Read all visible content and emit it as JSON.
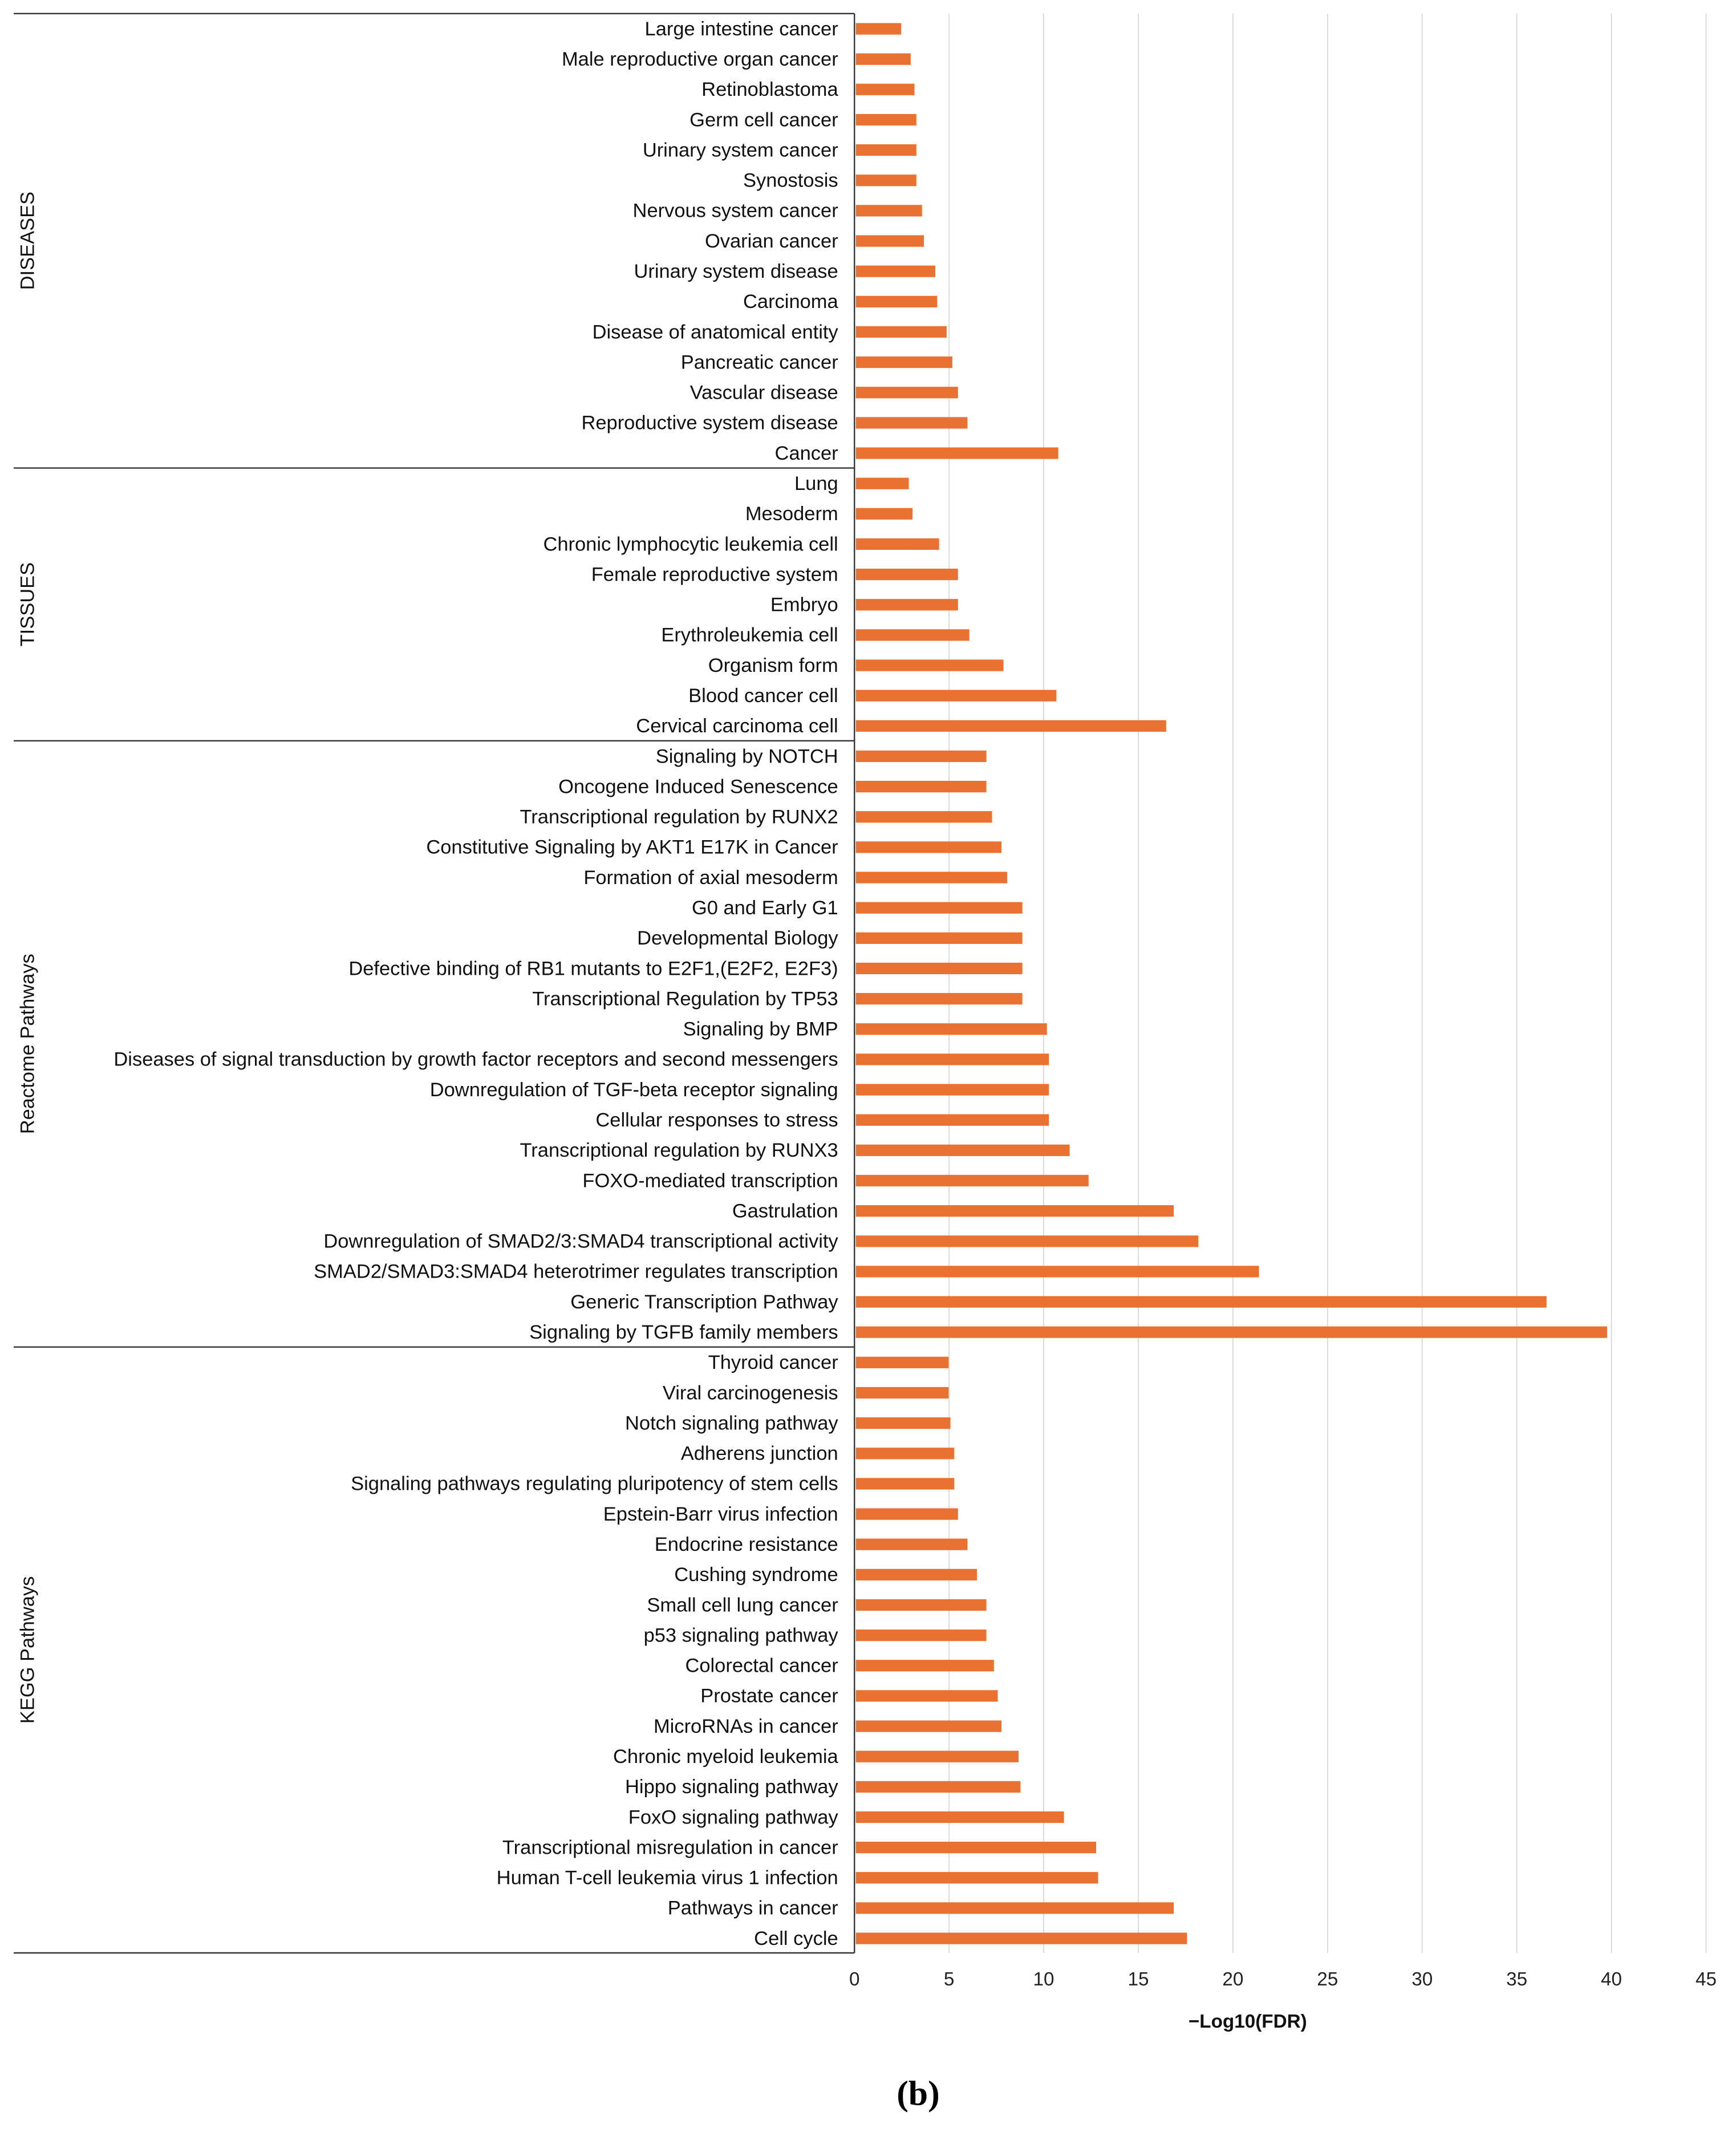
{
  "chart_data": {
    "type": "bar",
    "orientation": "horizontal",
    "xlabel": "−Log10(FDR)",
    "xlim": [
      0,
      45
    ],
    "xticks": [
      "0",
      "5",
      "10",
      "15",
      "20",
      "25",
      "30",
      "35",
      "40",
      "45"
    ],
    "grid": true,
    "bar_color": "#E97132",
    "caption": "(b)",
    "groups": [
      {
        "name": "DISEASES",
        "items": [
          {
            "label": "Large intestine cancer",
            "value": 2.4
          },
          {
            "label": "Male reproductive organ cancer",
            "value": 2.9
          },
          {
            "label": "Retinoblastoma",
            "value": 3.1
          },
          {
            "label": "Germ cell cancer",
            "value": 3.2
          },
          {
            "label": "Urinary system cancer",
            "value": 3.2
          },
          {
            "label": "Synostosis",
            "value": 3.2
          },
          {
            "label": "Nervous system cancer",
            "value": 3.5
          },
          {
            "label": "Ovarian cancer",
            "value": 3.6
          },
          {
            "label": "Urinary system disease",
            "value": 4.2
          },
          {
            "label": "Carcinoma",
            "value": 4.3
          },
          {
            "label": "Disease of anatomical entity",
            "value": 4.8
          },
          {
            "label": "Pancreatic cancer",
            "value": 5.1
          },
          {
            "label": "Vascular disease",
            "value": 5.4
          },
          {
            "label": "Reproductive system disease",
            "value": 5.9
          },
          {
            "label": "Cancer",
            "value": 10.7
          }
        ]
      },
      {
        "name": "TISSUES",
        "items": [
          {
            "label": "Lung",
            "value": 2.8
          },
          {
            "label": "Mesoderm",
            "value": 3.0
          },
          {
            "label": "Chronic lymphocytic leukemia cell",
            "value": 4.4
          },
          {
            "label": "Female reproductive system",
            "value": 5.4
          },
          {
            "label": "Embryo",
            "value": 5.4
          },
          {
            "label": "Erythroleukemia cell",
            "value": 6.0
          },
          {
            "label": "Organism form",
            "value": 7.8
          },
          {
            "label": "Blood cancer cell",
            "value": 10.6
          },
          {
            "label": "Cervical carcinoma cell",
            "value": 16.4
          }
        ]
      },
      {
        "name": "Reactome Pathways",
        "items": [
          {
            "label": "Signaling by NOTCH",
            "value": 6.9
          },
          {
            "label": "Oncogene Induced Senescence",
            "value": 6.9
          },
          {
            "label": "Transcriptional regulation by RUNX2",
            "value": 7.2
          },
          {
            "label": "Constitutive Signaling by AKT1 E17K in Cancer",
            "value": 7.7
          },
          {
            "label": "Formation of axial mesoderm",
            "value": 8.0
          },
          {
            "label": "G0 and Early G1",
            "value": 8.8
          },
          {
            "label": "Developmental Biology",
            "value": 8.8
          },
          {
            "label": "Defective binding of RB1 mutants to E2F1,(E2F2, E2F3)",
            "value": 8.8
          },
          {
            "label": "Transcriptional Regulation by TP53",
            "value": 8.8
          },
          {
            "label": "Signaling by BMP",
            "value": 10.1
          },
          {
            "label": "Diseases of signal transduction by growth factor receptors and second messengers",
            "value": 10.2
          },
          {
            "label": "Downregulation of TGF-beta receptor signaling",
            "value": 10.2
          },
          {
            "label": "Cellular responses to stress",
            "value": 10.2
          },
          {
            "label": "Transcriptional regulation by RUNX3",
            "value": 11.3
          },
          {
            "label": "FOXO-mediated transcription",
            "value": 12.3
          },
          {
            "label": "Gastrulation",
            "value": 16.8
          },
          {
            "label": "Downregulation of SMAD2/3:SMAD4 transcriptional activity",
            "value": 18.1
          },
          {
            "label": "SMAD2/SMAD3:SMAD4 heterotrimer regulates transcription",
            "value": 21.3
          },
          {
            "label": "Generic Transcription Pathway",
            "value": 36.5
          },
          {
            "label": "Signaling by TGFB family members",
            "value": 39.7
          }
        ]
      },
      {
        "name": "KEGG Pathways",
        "items": [
          {
            "label": "Thyroid cancer",
            "value": 4.9
          },
          {
            "label": "Viral carcinogenesis",
            "value": 4.9
          },
          {
            "label": "Notch signaling pathway",
            "value": 5.0
          },
          {
            "label": "Adherens junction",
            "value": 5.2
          },
          {
            "label": "Signaling pathways regulating pluripotency of stem cells",
            "value": 5.2
          },
          {
            "label": "Epstein-Barr virus infection",
            "value": 5.4
          },
          {
            "label": "Endocrine resistance",
            "value": 5.9
          },
          {
            "label": "Cushing syndrome",
            "value": 6.4
          },
          {
            "label": "Small cell lung cancer",
            "value": 6.9
          },
          {
            "label": "p53 signaling pathway",
            "value": 6.9
          },
          {
            "label": "Colorectal cancer",
            "value": 7.3
          },
          {
            "label": "Prostate cancer",
            "value": 7.5
          },
          {
            "label": "MicroRNAs in cancer",
            "value": 7.7
          },
          {
            "label": "Chronic myeloid leukemia",
            "value": 8.6
          },
          {
            "label": "Hippo signaling pathway",
            "value": 8.7
          },
          {
            "label": "FoxO signaling pathway",
            "value": 11.0
          },
          {
            "label": "Transcriptional misregulation in cancer",
            "value": 12.7
          },
          {
            "label": "Human T-cell leukemia virus 1 infection",
            "value": 12.8
          },
          {
            "label": "Pathways in cancer",
            "value": 16.8
          },
          {
            "label": "Cell cycle",
            "value": 17.5
          }
        ]
      }
    ]
  }
}
